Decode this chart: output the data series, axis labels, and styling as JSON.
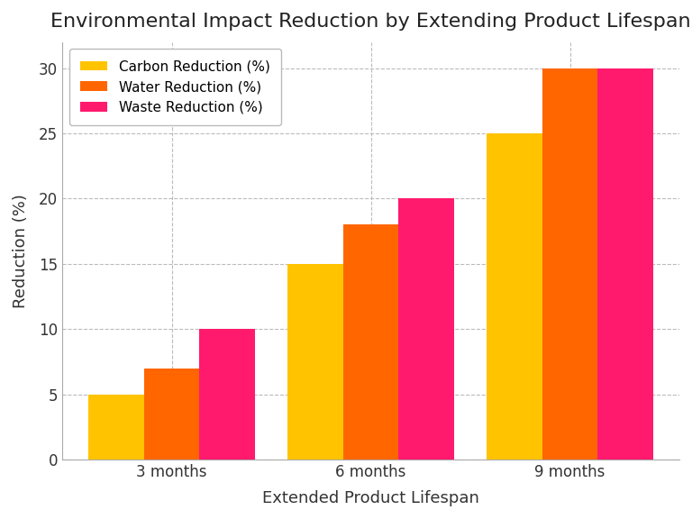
{
  "title": "Environmental Impact Reduction by Extending Product Lifespan",
  "xlabel": "Extended Product Lifespan",
  "ylabel": "Reduction (%)",
  "categories": [
    "3 months",
    "6 months",
    "9 months"
  ],
  "series": [
    {
      "label": "Carbon Reduction (%)",
      "values": [
        5,
        15,
        25
      ],
      "color": "#FFC300"
    },
    {
      "label": "Water Reduction (%)",
      "values": [
        7,
        18,
        30
      ],
      "color": "#FF6600"
    },
    {
      "label": "Waste Reduction (%)",
      "values": [
        10,
        20,
        30
      ],
      "color": "#FF1A6E"
    }
  ],
  "ylim": [
    0,
    32
  ],
  "yticks": [
    0,
    5,
    10,
    15,
    20,
    25,
    30
  ],
  "bar_width": 0.28,
  "background_color": "#FFFFFF",
  "grid_color": "#BBBBBB",
  "title_fontsize": 16,
  "label_fontsize": 13,
  "tick_fontsize": 12,
  "legend_fontsize": 11,
  "figsize": [
    7.68,
    5.76
  ],
  "dpi": 100
}
